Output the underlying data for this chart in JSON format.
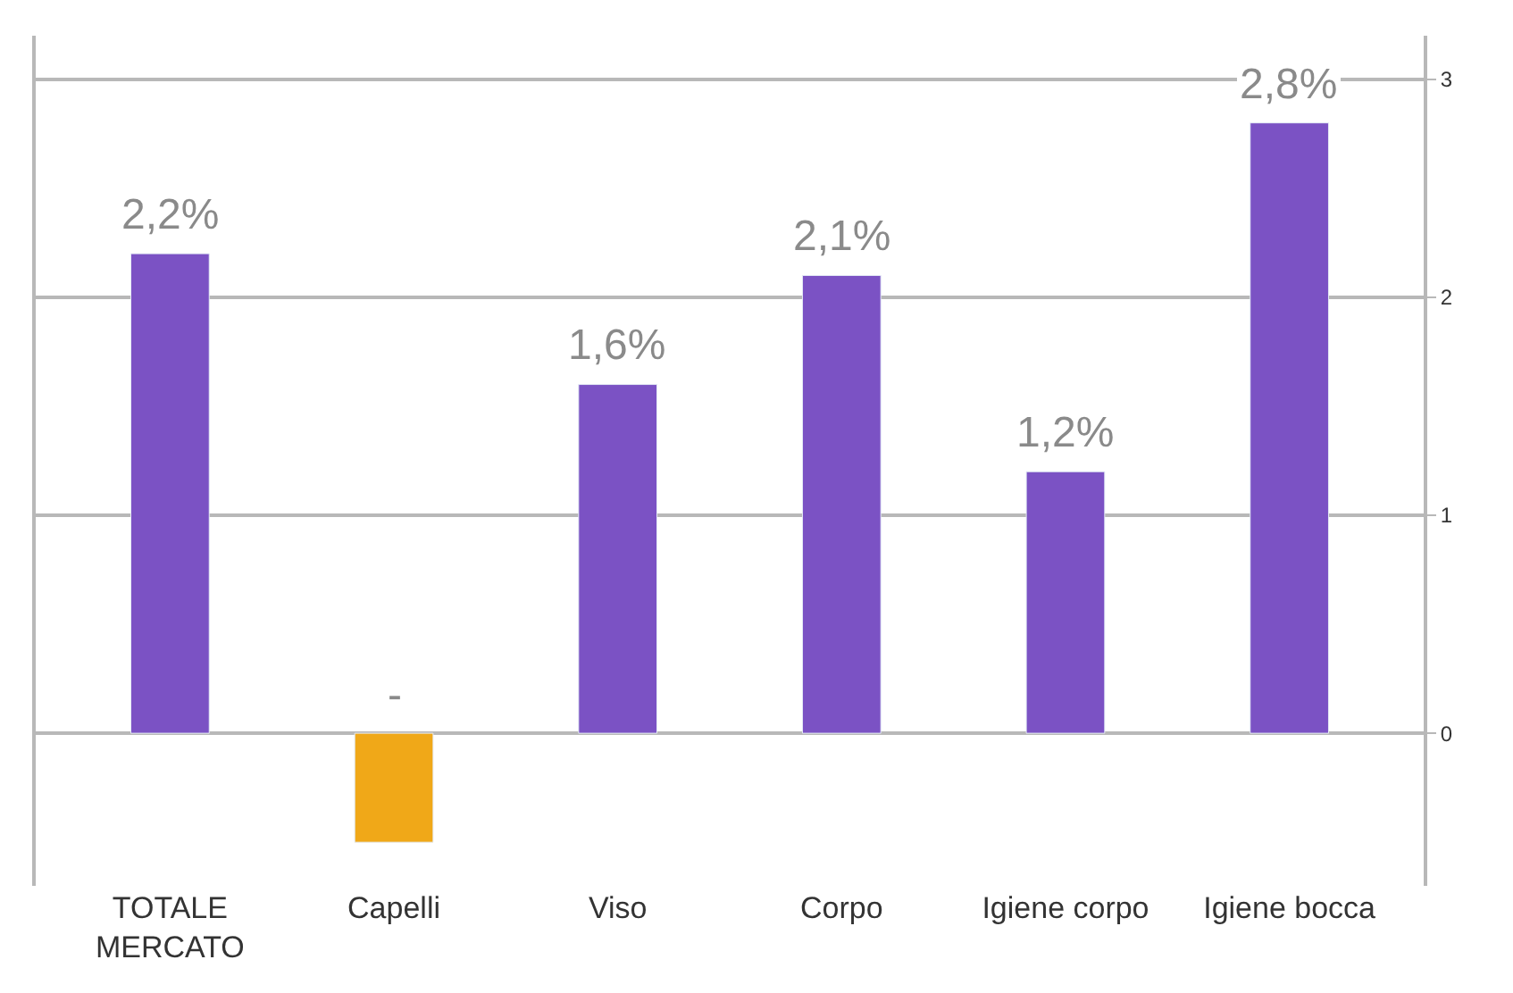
{
  "chart_data": {
    "type": "bar",
    "categories": [
      "TOTALE\nMERCATO",
      "Capelli",
      "Viso",
      "Corpo",
      "Igiene corpo",
      "Igiene bocca"
    ],
    "values": [
      2.2,
      -0.5,
      1.6,
      2.1,
      1.2,
      2.8
    ],
    "value_labels": [
      "2,2%",
      "-",
      "1,6%",
      "2,1%",
      "1,2%",
      "2,8%"
    ],
    "colors": [
      "#7b52c4",
      "#f0a818",
      "#7b52c4",
      "#7b52c4",
      "#7b52c4",
      "#7b52c4"
    ],
    "ylim": [
      -0.7,
      3.2
    ],
    "yticks": [
      0,
      1,
      2,
      3
    ],
    "grid": "y",
    "legend": false
  }
}
